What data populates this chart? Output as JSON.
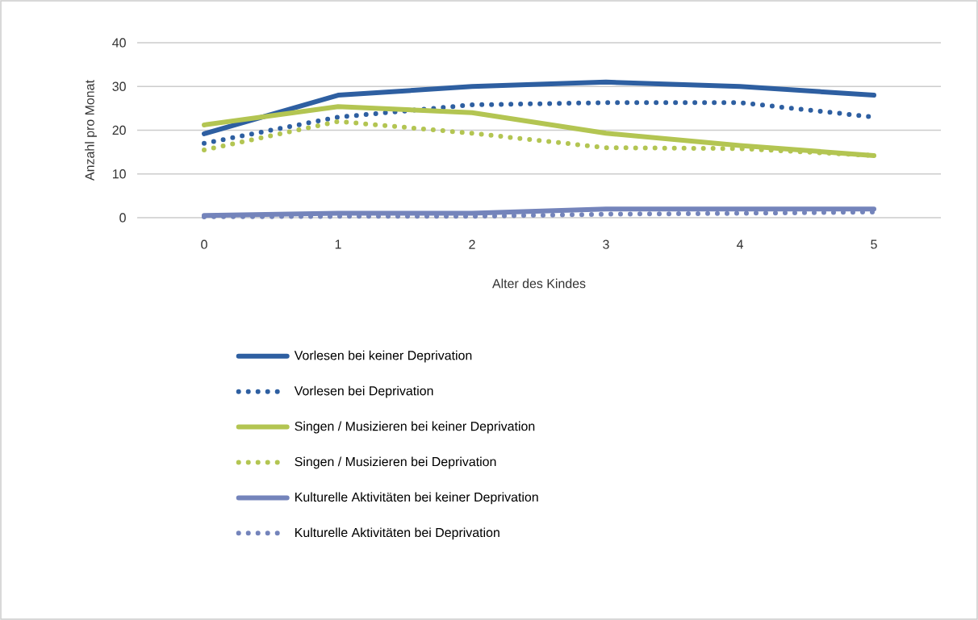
{
  "chart_data": {
    "type": "line",
    "xlabel": "Alter des Kindes",
    "ylabel": "Anzahl pro Monat",
    "x": [
      0,
      1,
      2,
      3,
      4,
      5
    ],
    "xlim": [
      -0.5,
      5.5
    ],
    "xticks": [
      0,
      1,
      2,
      3,
      4,
      5
    ],
    "ylim": [
      0,
      40
    ],
    "yticks": [
      0,
      10,
      20,
      30,
      40
    ],
    "grid": "y",
    "legend": "bottom",
    "series": [
      {
        "name": "Vorlesen bei  keiner Deprivation",
        "color": "#2e5fa1",
        "line_style": "solid",
        "values": [
          19.2,
          28,
          30,
          31,
          30,
          28
        ]
      },
      {
        "name": "Vorlesen bei  Deprivation",
        "color": "#2e5fa1",
        "line_style": "dotted",
        "values": [
          17,
          23,
          25.8,
          26.3,
          26.3,
          23
        ]
      },
      {
        "name": "Singen / Musizieren bei  keiner Deprivation",
        "color": "#b3c552",
        "line_style": "solid",
        "values": [
          21.2,
          25.4,
          24,
          19.3,
          16.5,
          14.2
        ]
      },
      {
        "name": "Singen / Musizieren bei  Deprivation",
        "color": "#b3c552",
        "line_style": "dotted",
        "values": [
          15.5,
          22,
          19.3,
          16,
          15.8,
          14.2
        ]
      },
      {
        "name": "Kulturelle Aktivitäten bei  keiner Deprivation",
        "color": "#7484bb",
        "line_style": "solid",
        "values": [
          0.5,
          1,
          1,
          2,
          2,
          2
        ]
      },
      {
        "name": "Kulturelle Aktivitäten bei  Deprivation",
        "color": "#7484bb",
        "line_style": "dotted",
        "values": [
          0.2,
          0.3,
          0.3,
          0.8,
          1,
          1.3
        ]
      }
    ]
  }
}
